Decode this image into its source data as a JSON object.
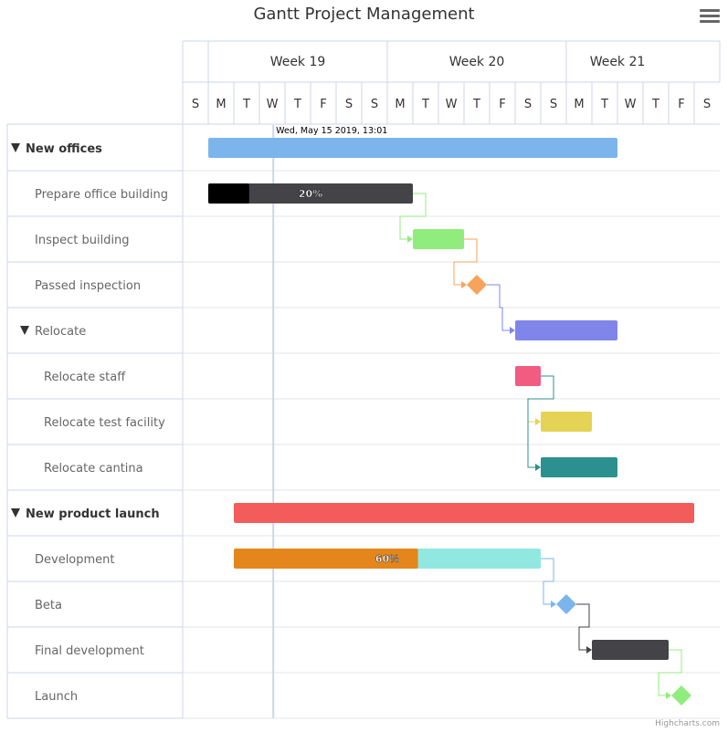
{
  "title": "Gantt Project Management",
  "credits": "Highcharts.com",
  "menu_icon": "hamburger-menu-icon",
  "colors": {
    "grid": "#e6e6e6",
    "axis_line": "#ccd6eb",
    "current_date_line": "#ccd6eb",
    "text": "#333333",
    "row_label": "#666666"
  },
  "chart_data": {
    "type": "gantt",
    "current_date_label": "Wed, May 15 2019, 13:01",
    "current_date": "2019-05-15T13:01",
    "x_range": [
      "2019-05-12",
      "2019-05-31"
    ],
    "weeks": [
      {
        "label": "Week 19",
        "start": "2019-05-13",
        "end": "2019-05-20"
      },
      {
        "label": "Week 20",
        "start": "2019-05-20",
        "end": "2019-05-27"
      },
      {
        "label": "Week 21",
        "start": "2019-05-27",
        "end": "2019-05-31"
      }
    ],
    "day_labels": [
      "S",
      "M",
      "T",
      "W",
      "T",
      "F",
      "S",
      "S",
      "M",
      "T",
      "W",
      "T",
      "F",
      "S",
      "S",
      "M",
      "T",
      "W",
      "T",
      "F",
      "S"
    ],
    "tasks": [
      {
        "name": "New offices",
        "level": 0,
        "group": true,
        "collapse_icon": "triangle-down-icon",
        "start": "2019-05-13",
        "end": "2019-05-29",
        "color": "#7cb5ec"
      },
      {
        "name": "Prepare office building",
        "level": 1,
        "start": "2019-05-13",
        "end": "2019-05-21",
        "completed": 0.2,
        "completed_label": "20%",
        "color": "#434348",
        "completed_color": "#000000"
      },
      {
        "name": "Inspect building",
        "level": 1,
        "start": "2019-05-21",
        "end": "2019-05-23",
        "color": "#90ed7d",
        "depends_on": "Prepare office building",
        "link_color": "#90ed7d"
      },
      {
        "name": "Passed inspection",
        "level": 1,
        "milestone": true,
        "start": "2019-05-23.5",
        "color": "#f7a35c",
        "depends_on": "Inspect building",
        "link_color": "#f7a35c"
      },
      {
        "name": "Relocate",
        "level": 1,
        "group": true,
        "collapse_icon": "triangle-down-icon",
        "start": "2019-05-25",
        "end": "2019-05-29",
        "color": "#8085e9",
        "depends_on": "Passed inspection",
        "link_color": "#8085e9"
      },
      {
        "name": "Relocate staff",
        "level": 2,
        "start": "2019-05-25",
        "end": "2019-05-26",
        "color": "#f15c80"
      },
      {
        "name": "Relocate test facility",
        "level": 2,
        "start": "2019-05-26",
        "end": "2019-05-28",
        "color": "#e4d354",
        "depends_on": "Relocate staff",
        "link_color": "#e4d354"
      },
      {
        "name": "Relocate cantina",
        "level": 2,
        "start": "2019-05-26",
        "end": "2019-05-29",
        "color": "#2b908f",
        "depends_on": "Relocate staff",
        "link_color": "#2b908f"
      },
      {
        "name": "New product launch",
        "level": 0,
        "group": true,
        "collapse_icon": "triangle-down-icon",
        "start": "2019-05-14",
        "end": "2019-06-01",
        "color": "#f45b5b"
      },
      {
        "name": "Development",
        "level": 1,
        "start": "2019-05-14",
        "end": "2019-05-26",
        "completed": 0.6,
        "completed_label": "60%",
        "color": "#91e8e1",
        "completed_color": "#e4861c"
      },
      {
        "name": "Beta",
        "level": 1,
        "milestone": true,
        "start": "2019-05-27",
        "color": "#7cb5ec",
        "depends_on": "Development",
        "link_color": "#7cb5ec"
      },
      {
        "name": "Final development",
        "level": 1,
        "start": "2019-05-28",
        "end": "2019-05-31",
        "color": "#434348",
        "depends_on": "Beta",
        "link_color": "#434348"
      },
      {
        "name": "Launch",
        "level": 1,
        "milestone": true,
        "start": "2019-05-31.5",
        "color": "#90ed7d",
        "depends_on": "Final development",
        "link_color": "#90ed7d"
      }
    ]
  }
}
